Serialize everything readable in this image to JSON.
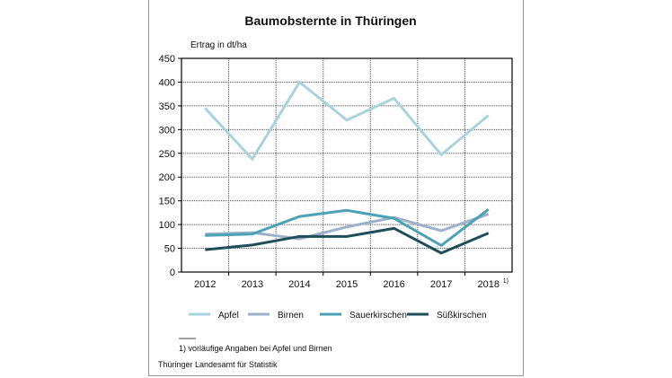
{
  "chart_data": {
    "type": "line",
    "title": "Baumobsternte in Thüringen",
    "ylabel": "Ertrag in dt/ha",
    "xlabel": "",
    "categories": [
      "2012",
      "2013",
      "2014",
      "2015",
      "2016",
      "2017",
      "2018"
    ],
    "last_category_note": "1)",
    "ylim": [
      0,
      450
    ],
    "yticks": [
      0,
      50,
      100,
      150,
      200,
      250,
      300,
      350,
      400,
      450
    ],
    "grid": true,
    "legend_position": "bottom",
    "series": [
      {
        "name": "Apfel",
        "color": "#a9d3dc",
        "values": [
          345,
          238,
          400,
          320,
          366,
          247,
          330
        ]
      },
      {
        "name": "Birnen",
        "color": "#9cb0c9",
        "values": [
          80,
          83,
          70,
          95,
          115,
          87,
          122
        ]
      },
      {
        "name": "Sauerkirschen",
        "color": "#4aa2b4",
        "values": [
          77,
          80,
          117,
          130,
          113,
          56,
          132
        ]
      },
      {
        "name": "Süßkirschen",
        "color": "#1f4e58",
        "values": [
          47,
          57,
          75,
          75,
          92,
          40,
          82
        ]
      }
    ],
    "footnote": "1) vorläufige Angaben bei Apfel und Birnen",
    "source": "Thüringer Landesamt für Statistik"
  }
}
